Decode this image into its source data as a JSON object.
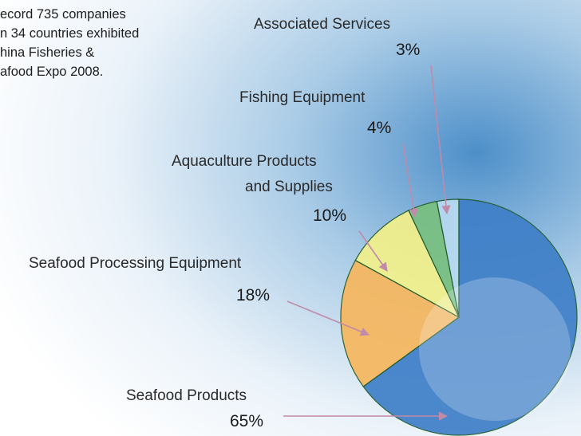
{
  "intro": {
    "lines": [
      "ecord 735 companies",
      "n 34 countries exhibited",
      "hina Fisheries &",
      "afood Expo 2008."
    ]
  },
  "colors": {
    "seafood_products": "#3f7fc8",
    "seafood_processing_equipment": "#f6b75e",
    "aquaculture_products_and_supplies": "#f3f08a",
    "fishing_equipment": "#79c07f",
    "associated_services": "#b8daf0",
    "arrow": "#c08aa8"
  },
  "chart_data": {
    "type": "pie",
    "title": "",
    "slices": [
      {
        "label": "Associated Services",
        "value": 3,
        "value_label": "3%"
      },
      {
        "label": "Fishing Equipment",
        "value": 4,
        "value_label": "4%"
      },
      {
        "label": "Aquaculture Products and Supplies",
        "label_lines": [
          "Aquaculture Products",
          "and Supplies"
        ],
        "value": 10,
        "value_label": "10%"
      },
      {
        "label": "Seafood Processing Equipment",
        "value": 18,
        "value_label": "18%"
      },
      {
        "label": "Seafood Products",
        "value": 65,
        "value_label": "65%"
      }
    ]
  }
}
